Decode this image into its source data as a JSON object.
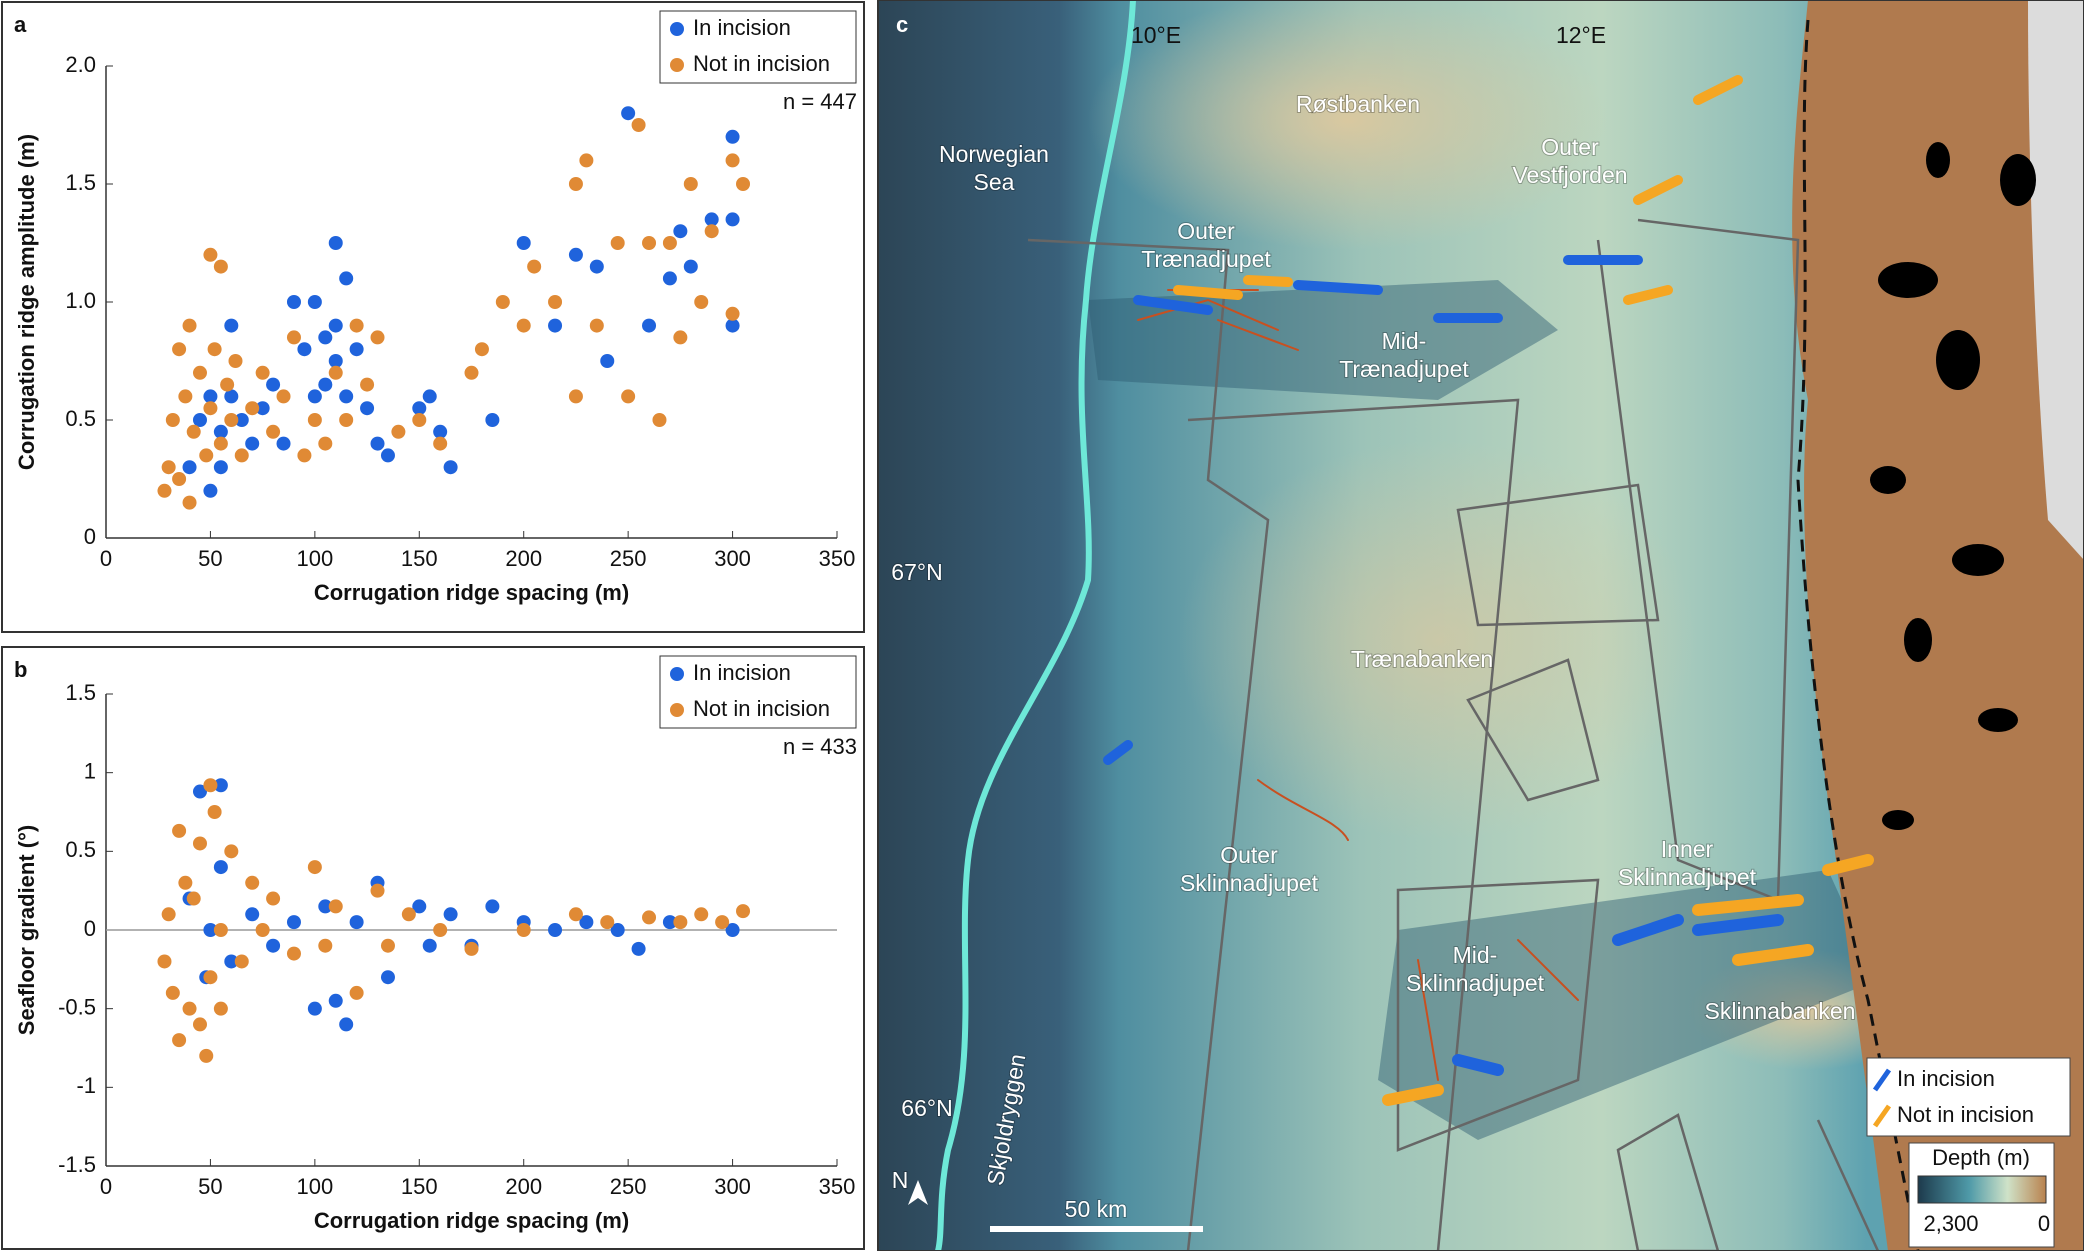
{
  "chart_data": [
    {
      "type": "scatter",
      "panel_label": "a",
      "xlabel": "Corrugation ridge spacing (m)",
      "ylabel": "Corrugation ridge amplitude (m)",
      "annotation": "n = 447",
      "xlim": [
        0,
        350
      ],
      "ylim": [
        0,
        2
      ],
      "xticks": [
        0,
        50,
        100,
        150,
        200,
        250,
        300,
        350
      ],
      "yticks": [
        0,
        0.5,
        {
          "value": 1,
          "label": "1.0"
        },
        1.5,
        {
          "value": 2,
          "label": "2.0"
        }
      ],
      "legend": "upper right",
      "series": [
        {
          "name": "In incision",
          "color": "#1f63dc",
          "x": [
            40,
            45,
            50,
            50,
            55,
            55,
            60,
            60,
            65,
            70,
            75,
            80,
            85,
            90,
            95,
            100,
            100,
            105,
            105,
            110,
            110,
            110,
            115,
            115,
            120,
            125,
            130,
            135,
            150,
            155,
            160,
            165,
            185,
            200,
            215,
            225,
            235,
            240,
            250,
            260,
            270,
            275,
            280,
            290,
            300,
            300,
            300
          ],
          "y": [
            0.3,
            0.5,
            0.6,
            0.2,
            0.45,
            0.3,
            0.9,
            0.6,
            0.5,
            0.4,
            0.55,
            0.65,
            0.4,
            1.0,
            0.8,
            1.0,
            0.6,
            0.85,
            0.65,
            1.25,
            0.9,
            0.75,
            1.1,
            0.6,
            0.8,
            0.55,
            0.4,
            0.35,
            0.55,
            0.6,
            0.45,
            0.3,
            0.5,
            1.25,
            0.9,
            1.2,
            1.15,
            0.75,
            1.8,
            0.9,
            1.1,
            1.3,
            1.15,
            1.35,
            1.7,
            1.35,
            0.9
          ]
        },
        {
          "name": "Not in incision",
          "color": "#e08a35",
          "x": [
            28,
            30,
            32,
            35,
            35,
            38,
            40,
            40,
            42,
            45,
            48,
            50,
            50,
            52,
            55,
            55,
            58,
            60,
            62,
            65,
            70,
            75,
            80,
            85,
            90,
            95,
            100,
            105,
            110,
            115,
            120,
            125,
            130,
            140,
            150,
            160,
            175,
            180,
            190,
            200,
            205,
            215,
            225,
            225,
            230,
            235,
            245,
            250,
            255,
            260,
            265,
            270,
            275,
            280,
            285,
            290,
            300,
            300,
            305
          ],
          "y": [
            0.2,
            0.3,
            0.5,
            0.8,
            0.25,
            0.6,
            0.9,
            0.15,
            0.45,
            0.7,
            0.35,
            1.2,
            0.55,
            0.8,
            1.15,
            0.4,
            0.65,
            0.5,
            0.75,
            0.35,
            0.55,
            0.7,
            0.45,
            0.6,
            0.85,
            0.35,
            0.5,
            0.4,
            0.7,
            0.5,
            0.9,
            0.65,
            0.85,
            0.45,
            0.5,
            0.4,
            0.7,
            0.8,
            1.0,
            0.9,
            1.15,
            1.0,
            0.6,
            1.5,
            1.6,
            0.9,
            1.25,
            0.6,
            1.75,
            1.25,
            0.5,
            1.25,
            0.85,
            1.5,
            1.0,
            1.3,
            1.6,
            0.95,
            1.5
          ]
        }
      ]
    },
    {
      "type": "scatter",
      "panel_label": "b",
      "xlabel": "Corrugation ridge spacing (m)",
      "ylabel": "Seafloor gradient (°)",
      "annotation": "n = 433",
      "xlim": [
        0,
        350
      ],
      "ylim": [
        -1.5,
        1.5
      ],
      "xticks": [
        0,
        50,
        100,
        150,
        200,
        250,
        300,
        350
      ],
      "yticks": [
        -1.5,
        -1,
        -0.5,
        0,
        0.5,
        1,
        1.5
      ],
      "legend": "upper right",
      "reference_line": 0,
      "series": [
        {
          "name": "In incision",
          "color": "#1f63dc",
          "x": [
            40,
            45,
            48,
            50,
            55,
            55,
            60,
            70,
            80,
            90,
            100,
            105,
            110,
            115,
            120,
            130,
            135,
            150,
            155,
            165,
            175,
            185,
            200,
            215,
            230,
            245,
            255,
            270,
            300
          ],
          "y": [
            0.2,
            0.88,
            -0.3,
            0.0,
            0.92,
            0.4,
            -0.2,
            0.1,
            -0.1,
            0.05,
            -0.5,
            0.15,
            -0.45,
            -0.6,
            0.05,
            0.3,
            -0.3,
            0.15,
            -0.1,
            0.1,
            -0.1,
            0.15,
            0.05,
            0.0,
            0.05,
            0.0,
            -0.12,
            0.05,
            0.0
          ]
        },
        {
          "name": "Not in incision",
          "color": "#e08a35",
          "x": [
            28,
            30,
            32,
            35,
            35,
            38,
            40,
            42,
            45,
            45,
            48,
            50,
            50,
            52,
            55,
            55,
            60,
            65,
            70,
            75,
            80,
            90,
            100,
            105,
            110,
            120,
            130,
            135,
            145,
            160,
            175,
            200,
            225,
            240,
            260,
            275,
            285,
            295,
            305
          ],
          "y": [
            -0.2,
            0.1,
            -0.4,
            0.63,
            -0.7,
            0.3,
            -0.5,
            0.2,
            0.55,
            -0.6,
            -0.8,
            0.92,
            -0.3,
            0.75,
            0.0,
            -0.5,
            0.5,
            -0.2,
            0.3,
            0.0,
            0.2,
            -0.15,
            0.4,
            -0.1,
            0.15,
            -0.4,
            0.25,
            -0.1,
            0.1,
            0.0,
            -0.12,
            0.0,
            0.1,
            0.05,
            0.08,
            0.05,
            0.1,
            0.05,
            0.12
          ]
        }
      ]
    }
  ],
  "map": {
    "panel_label": "c",
    "lon_labels": [
      "10°E",
      "12°E"
    ],
    "lat_labels": [
      "67°N",
      "66°N"
    ],
    "places": [
      [
        "Røstbanken"
      ],
      [
        "Norwegian",
        "Sea"
      ],
      [
        "Outer",
        "Vestfjorden"
      ],
      [
        "Outer",
        "Trænadjupet"
      ],
      [
        "Mid-",
        "Trænadjupet"
      ],
      [
        "Trænabanken"
      ],
      [
        "Outer",
        "Sklinnadjupet"
      ],
      [
        "Inner",
        "Sklinnadjupet"
      ],
      [
        "Mid-",
        "Sklinnadjupet"
      ],
      [
        "Sklinnabanken"
      ],
      [
        "Skjoldryggen"
      ]
    ],
    "scale_bar": "50 km",
    "north": "N",
    "legend": [
      "In incision",
      "Not in incision"
    ],
    "depth_title": "Depth (m)",
    "depth_range_labels": [
      "2,300",
      "0"
    ]
  }
}
